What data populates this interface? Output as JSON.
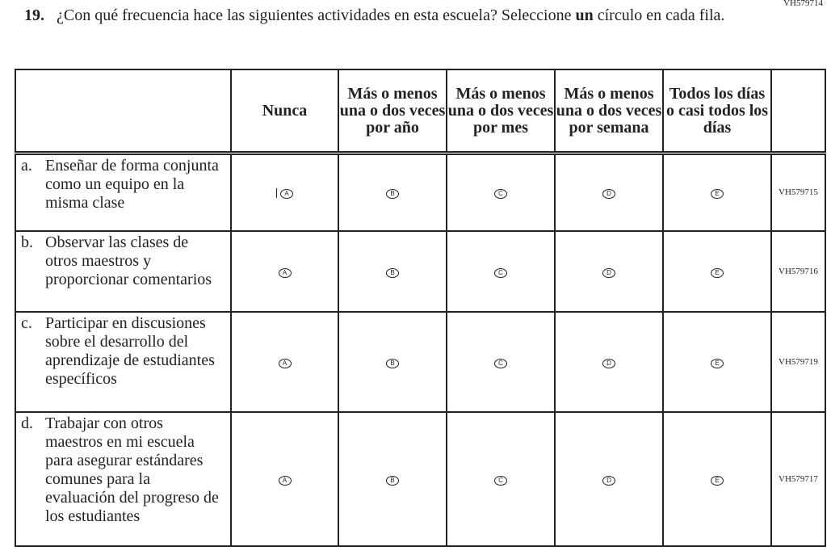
{
  "page_code": "VH579714",
  "question": {
    "number": "19.",
    "text": "¿Con qué frecuencia hace las siguientes actividades en esta escuela? Seleccione ",
    "bold_word": "un",
    "text_end": " círculo en cada fila."
  },
  "columns": [
    "Nunca",
    "Más o menos una o dos veces por año",
    "Más o menos una o dos veces por mes",
    "Más o menos una o dos veces por semana",
    "Todos los días o casi todos los días"
  ],
  "options": [
    "A",
    "B",
    "C",
    "D",
    "E"
  ],
  "rows": [
    {
      "letter": "a.",
      "text": "Enseñar de forma conjunta como un equipo en la misma clase",
      "code": "VH579715"
    },
    {
      "letter": "b.",
      "text": "Observar las clases de otros maestros y proporcionar comentarios",
      "code": "VH579716"
    },
    {
      "letter": "c.",
      "text": "Participar en discusiones sobre el desarrollo del aprendizaje de estudiantes específicos",
      "code": "VH579719"
    },
    {
      "letter": "d.",
      "text": "Trabajar con otros maestros en mi escuela para asegurar estándares comunes para la evaluación del progreso de los estudiantes",
      "code": "VH579717"
    }
  ]
}
